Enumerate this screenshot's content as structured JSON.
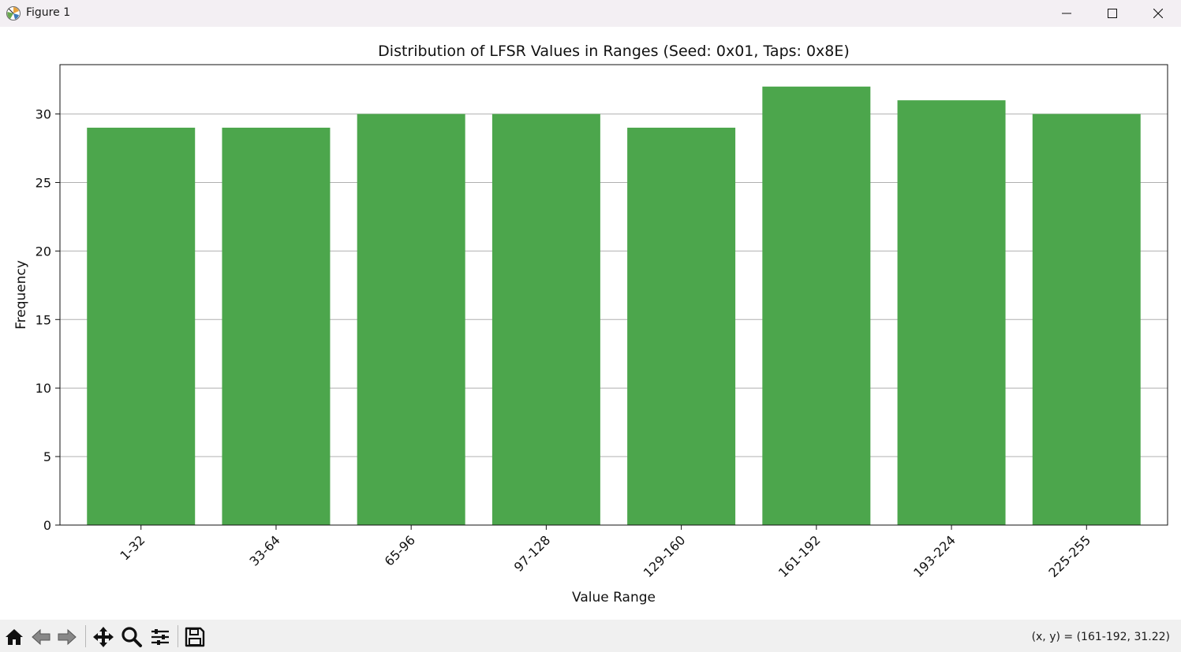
{
  "window": {
    "title": "Figure 1",
    "icons": [
      "matplotlib-logo-icon",
      "minimize-icon",
      "maximize-icon",
      "close-icon"
    ]
  },
  "toolbar": {
    "buttons": [
      "home-icon",
      "back-icon",
      "forward-icon",
      "pan-icon",
      "zoom-icon",
      "configure-subplots-icon",
      "save-icon"
    ],
    "coords": "(x, y) = (161-192, 31.22)"
  },
  "chart_data": {
    "type": "bar",
    "title": "Distribution of LFSR Values in Ranges (Seed: 0x01, Taps: 0x8E)",
    "xlabel": "Value Range",
    "ylabel": "Frequency",
    "categories": [
      "1-32",
      "33-64",
      "65-96",
      "97-128",
      "129-160",
      "161-192",
      "193-224",
      "225-255"
    ],
    "values": [
      29,
      29,
      30,
      30,
      29,
      32,
      31,
      30
    ],
    "ylim": [
      0,
      33.6
    ],
    "yticks": [
      0,
      5,
      10,
      15,
      20,
      25,
      30
    ],
    "bar_color": "#4ca64c",
    "grid": "horizontal"
  }
}
